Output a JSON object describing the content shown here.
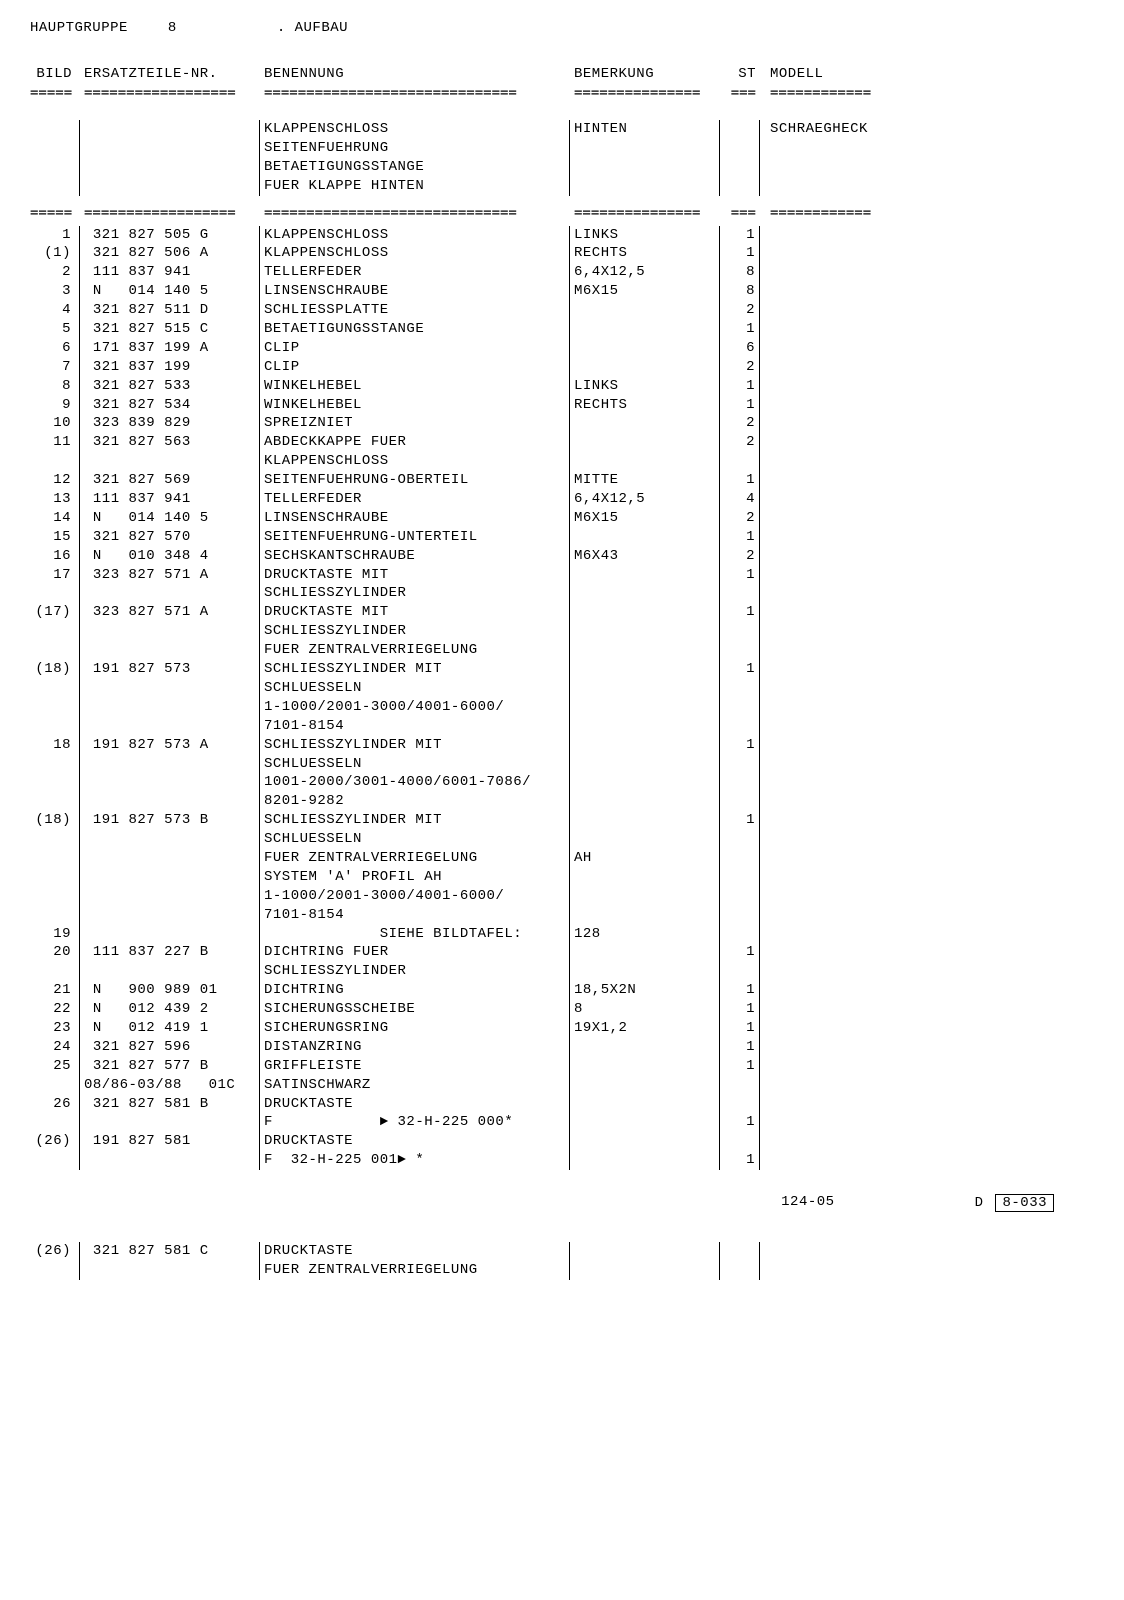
{
  "header": {
    "hauptgruppe_label": "HAUPTGRUPPE",
    "hauptgruppe_value": "8",
    "aufbau_label": ". AUFBAU"
  },
  "col_headers": {
    "bild": "BILD",
    "ersatz": "ERSATZTEILE-NR.",
    "benen": "BENENNUNG",
    "bemerk": "BEMERKUNG",
    "st": "ST",
    "modell": "MODELL"
  },
  "separator_chars": {
    "bild": "=====",
    "ersatz": "==================",
    "benen": "==============================",
    "bemerk": "===============",
    "st": "===",
    "modell": "============"
  },
  "intro_rows": [
    {
      "bild": "",
      "ersatz": "",
      "benen": "KLAPPENSCHLOSS",
      "bemerk": "HINTEN",
      "st": "",
      "modell": "SCHRAEGHECK"
    },
    {
      "bild": "",
      "ersatz": "",
      "benen": "SEITENFUEHRUNG",
      "bemerk": "",
      "st": "",
      "modell": ""
    },
    {
      "bild": "",
      "ersatz": "",
      "benen": "BETAETIGUNGSSTANGE",
      "bemerk": "",
      "st": "",
      "modell": ""
    },
    {
      "bild": "",
      "ersatz": "",
      "benen": "FUER KLAPPE HINTEN",
      "bemerk": "",
      "st": "",
      "modell": ""
    }
  ],
  "rows": [
    {
      "bild": "1",
      "ersatz": " 321 827 505 G",
      "benen": "KLAPPENSCHLOSS",
      "bemerk": "LINKS",
      "st": "1",
      "modell": ""
    },
    {
      "bild": "(1)",
      "ersatz": " 321 827 506 A",
      "benen": "KLAPPENSCHLOSS",
      "bemerk": "RECHTS",
      "st": "1",
      "modell": ""
    },
    {
      "bild": "2",
      "ersatz": " 111 837 941",
      "benen": "TELLERFEDER",
      "bemerk": "6,4X12,5",
      "st": "8",
      "modell": ""
    },
    {
      "bild": "3",
      "ersatz": " N   014 140 5",
      "benen": "LINSENSCHRAUBE",
      "bemerk": "M6X15",
      "st": "8",
      "modell": ""
    },
    {
      "bild": "4",
      "ersatz": " 321 827 511 D",
      "benen": "SCHLIESSPLATTE",
      "bemerk": "",
      "st": "2",
      "modell": ""
    },
    {
      "bild": "5",
      "ersatz": " 321 827 515 C",
      "benen": "BETAETIGUNGSSTANGE",
      "bemerk": "",
      "st": "1",
      "modell": ""
    },
    {
      "bild": "6",
      "ersatz": " 171 837 199 A",
      "benen": "CLIP",
      "bemerk": "",
      "st": "6",
      "modell": ""
    },
    {
      "bild": "7",
      "ersatz": " 321 837 199",
      "benen": "CLIP",
      "bemerk": "",
      "st": "2",
      "modell": ""
    },
    {
      "bild": "8",
      "ersatz": " 321 827 533",
      "benen": "WINKELHEBEL",
      "bemerk": "LINKS",
      "st": "1",
      "modell": ""
    },
    {
      "bild": "9",
      "ersatz": " 321 827 534",
      "benen": "WINKELHEBEL",
      "bemerk": "RECHTS",
      "st": "1",
      "modell": ""
    },
    {
      "bild": "10",
      "ersatz": " 323 839 829",
      "benen": "SPREIZNIET",
      "bemerk": "",
      "st": "2",
      "modell": ""
    },
    {
      "bild": "11",
      "ersatz": " 321 827 563",
      "benen": "ABDECKKAPPE FUER",
      "bemerk": "",
      "st": "2",
      "modell": ""
    },
    {
      "bild": "",
      "ersatz": "",
      "benen": "KLAPPENSCHLOSS",
      "bemerk": "",
      "st": "",
      "modell": ""
    },
    {
      "bild": "12",
      "ersatz": " 321 827 569",
      "benen": "SEITENFUEHRUNG-OBERTEIL",
      "bemerk": "MITTE",
      "st": "1",
      "modell": ""
    },
    {
      "bild": "13",
      "ersatz": " 111 837 941",
      "benen": "TELLERFEDER",
      "bemerk": "6,4X12,5",
      "st": "4",
      "modell": ""
    },
    {
      "bild": "14",
      "ersatz": " N   014 140 5",
      "benen": "LINSENSCHRAUBE",
      "bemerk": "M6X15",
      "st": "2",
      "modell": ""
    },
    {
      "bild": "15",
      "ersatz": " 321 827 570",
      "benen": "SEITENFUEHRUNG-UNTERTEIL",
      "bemerk": "",
      "st": "1",
      "modell": ""
    },
    {
      "bild": "16",
      "ersatz": " N   010 348 4",
      "benen": "SECHSKANTSCHRAUBE",
      "bemerk": "M6X43",
      "st": "2",
      "modell": ""
    },
    {
      "bild": "17",
      "ersatz": " 323 827 571 A",
      "benen": "DRUCKTASTE MIT",
      "bemerk": "",
      "st": "1",
      "modell": ""
    },
    {
      "bild": "",
      "ersatz": "",
      "benen": "SCHLIESSZYLINDER",
      "bemerk": "",
      "st": "",
      "modell": ""
    },
    {
      "bild": "(17)",
      "ersatz": " 323 827 571 A",
      "benen": "DRUCKTASTE MIT",
      "bemerk": "",
      "st": "1",
      "modell": ""
    },
    {
      "bild": "",
      "ersatz": "",
      "benen": "SCHLIESSZYLINDER",
      "bemerk": "",
      "st": "",
      "modell": ""
    },
    {
      "bild": "",
      "ersatz": "",
      "benen": "FUER ZENTRALVERRIEGELUNG",
      "bemerk": "",
      "st": "",
      "modell": ""
    },
    {
      "bild": "(18)",
      "ersatz": " 191 827 573",
      "benen": "SCHLIESSZYLINDER MIT",
      "bemerk": "",
      "st": "1",
      "modell": ""
    },
    {
      "bild": "",
      "ersatz": "",
      "benen": "SCHLUESSELN",
      "bemerk": "",
      "st": "",
      "modell": ""
    },
    {
      "bild": "",
      "ersatz": "",
      "benen": "1-1000/2001-3000/4001-6000/",
      "bemerk": "",
      "st": "",
      "modell": ""
    },
    {
      "bild": "",
      "ersatz": "",
      "benen": "7101-8154",
      "bemerk": "",
      "st": "",
      "modell": ""
    },
    {
      "bild": "18",
      "ersatz": " 191 827 573 A",
      "benen": "SCHLIESSZYLINDER MIT",
      "bemerk": "",
      "st": "1",
      "modell": ""
    },
    {
      "bild": "",
      "ersatz": "",
      "benen": "SCHLUESSELN",
      "bemerk": "",
      "st": "",
      "modell": ""
    },
    {
      "bild": "",
      "ersatz": "",
      "benen": "1001-2000/3001-4000/6001-7086/",
      "bemerk": "",
      "st": "",
      "modell": ""
    },
    {
      "bild": "",
      "ersatz": "",
      "benen": "8201-9282",
      "bemerk": "",
      "st": "",
      "modell": ""
    },
    {
      "bild": "(18)",
      "ersatz": " 191 827 573 B",
      "benen": "SCHLIESSZYLINDER MIT",
      "bemerk": "",
      "st": "1",
      "modell": ""
    },
    {
      "bild": "",
      "ersatz": "",
      "benen": "SCHLUESSELN",
      "bemerk": "",
      "st": "",
      "modell": ""
    },
    {
      "bild": "",
      "ersatz": "",
      "benen": "FUER ZENTRALVERRIEGELUNG",
      "bemerk": "AH",
      "st": "",
      "modell": ""
    },
    {
      "bild": "",
      "ersatz": "",
      "benen": "SYSTEM 'A' PROFIL AH",
      "bemerk": "",
      "st": "",
      "modell": ""
    },
    {
      "bild": "",
      "ersatz": "",
      "benen": "1-1000/2001-3000/4001-6000/",
      "bemerk": "",
      "st": "",
      "modell": ""
    },
    {
      "bild": "",
      "ersatz": "",
      "benen": "7101-8154",
      "bemerk": "",
      "st": "",
      "modell": ""
    },
    {
      "bild": "19",
      "ersatz": "",
      "benen": "             SIEHE BILDTAFEL:",
      "bemerk": "128",
      "st": "",
      "modell": ""
    },
    {
      "bild": "20",
      "ersatz": " 111 837 227 B",
      "benen": "DICHTRING FUER",
      "bemerk": "",
      "st": "1",
      "modell": ""
    },
    {
      "bild": "",
      "ersatz": "",
      "benen": "SCHLIESSZYLINDER",
      "bemerk": "",
      "st": "",
      "modell": ""
    },
    {
      "bild": "21",
      "ersatz": " N   900 989 01",
      "benen": "DICHTRING",
      "bemerk": "18,5X2N",
      "st": "1",
      "modell": ""
    },
    {
      "bild": "22",
      "ersatz": " N   012 439 2",
      "benen": "SICHERUNGSSCHEIBE",
      "bemerk": "8",
      "st": "1",
      "modell": ""
    },
    {
      "bild": "23",
      "ersatz": " N   012 419 1",
      "benen": "SICHERUNGSRING",
      "bemerk": "19X1,2",
      "st": "1",
      "modell": ""
    },
    {
      "bild": "24",
      "ersatz": " 321 827 596",
      "benen": "DISTANZRING",
      "bemerk": "",
      "st": "1",
      "modell": ""
    },
    {
      "bild": "25",
      "ersatz": " 321 827 577 B",
      "benen": "GRIFFLEISTE",
      "bemerk": "",
      "st": "1",
      "modell": ""
    },
    {
      "bild": "",
      "ersatz": "08/86-03/88   01C",
      "benen": "SATINSCHWARZ",
      "bemerk": "",
      "st": "",
      "modell": ""
    },
    {
      "bild": "26",
      "ersatz": " 321 827 581 B",
      "benen": "DRUCKTASTE",
      "bemerk": "",
      "st": "",
      "modell": ""
    },
    {
      "bild": "",
      "ersatz": "",
      "benen": "F            ► 32-H-225 000*",
      "bemerk": "",
      "st": "1",
      "modell": ""
    },
    {
      "bild": "(26)",
      "ersatz": " 191 827 581",
      "benen": "DRUCKTASTE",
      "bemerk": "",
      "st": "",
      "modell": ""
    },
    {
      "bild": "",
      "ersatz": "",
      "benen": "F  32-H-225 001► *",
      "bemerk": "",
      "st": "1",
      "modell": ""
    }
  ],
  "footer": {
    "left": "124-05",
    "d_label": "D",
    "right": "8-033"
  },
  "bottom_rows": [
    {
      "bild": "(26)",
      "ersatz": " 321 827 581 C",
      "benen": "DRUCKTASTE",
      "bemerk": "",
      "st": "",
      "modell": ""
    },
    {
      "bild": "",
      "ersatz": "",
      "benen": "FUER ZENTRALVERRIEGELUNG",
      "bemerk": "",
      "st": "",
      "modell": ""
    }
  ]
}
